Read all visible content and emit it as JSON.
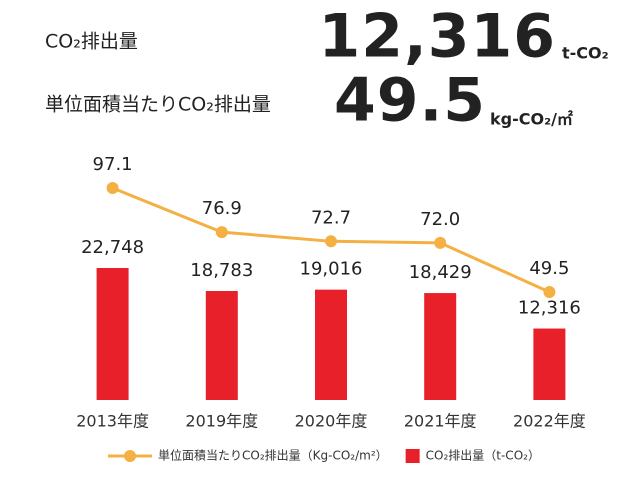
{
  "header": {
    "rows": [
      {
        "label": "CO₂排出量",
        "value": "12,316",
        "unit": "t-CO₂"
      },
      {
        "label": "単位面積当たりCO₂排出量",
        "value": "49.5",
        "unit": "kg-CO₂/㎡"
      }
    ]
  },
  "chart_data": {
    "type": "bar",
    "categories": [
      "2013年度",
      "2019年度",
      "2020年度",
      "2021年度",
      "2022年度"
    ],
    "series": [
      {
        "name": "単位面積当たりCO₂排出量（Kg-CO₂/m²）",
        "type": "line",
        "axis": "y2",
        "color": "#f4b043",
        "values": [
          97.1,
          76.9,
          72.7,
          72.0,
          49.5
        ],
        "value_labels": [
          "97.1",
          "76.9",
          "72.7",
          "72.0",
          "49.5"
        ]
      },
      {
        "name": "CO₂排出量（t-CO₂）",
        "type": "bar",
        "color": "#e8202a",
        "values": [
          22748,
          18783,
          19016,
          18429,
          12316
        ],
        "value_labels": [
          "22,748",
          "18,783",
          "19,016",
          "18,429",
          "12,316"
        ]
      }
    ]
  }
}
